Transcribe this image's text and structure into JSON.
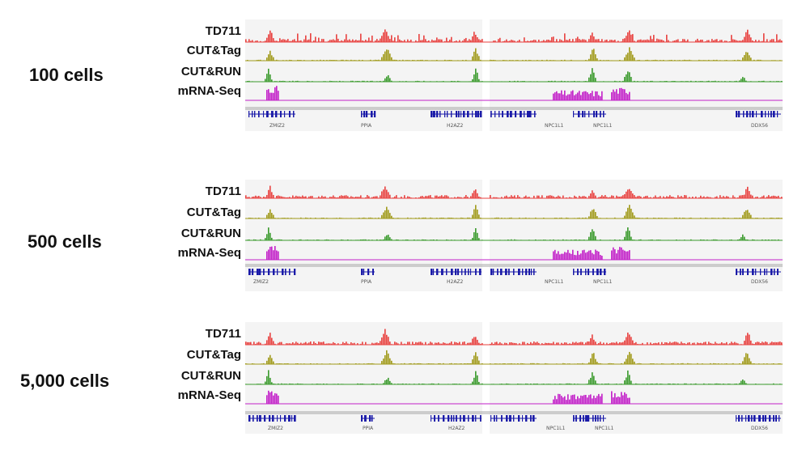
{
  "conditions": [
    {
      "label": "100 cells"
    },
    {
      "label": "500 cells"
    },
    {
      "label": "5,000 cells"
    }
  ],
  "tracks": [
    {
      "label": "TD711",
      "color": "#e8413f"
    },
    {
      "label": "CUT&Tag",
      "color": "#a09a1a"
    },
    {
      "label": "CUT&RUN",
      "color": "#3a9a2c"
    },
    {
      "label": "mRNA-Seq",
      "color": "#c21fc8"
    }
  ],
  "gene_color": "#1a1aa8",
  "genes": {
    "left": [
      "ZMIZ2",
      "PPIA",
      "H2AZ2"
    ],
    "right": [
      "NPC1L1",
      "NPC1L1",
      "DDX56"
    ]
  }
}
